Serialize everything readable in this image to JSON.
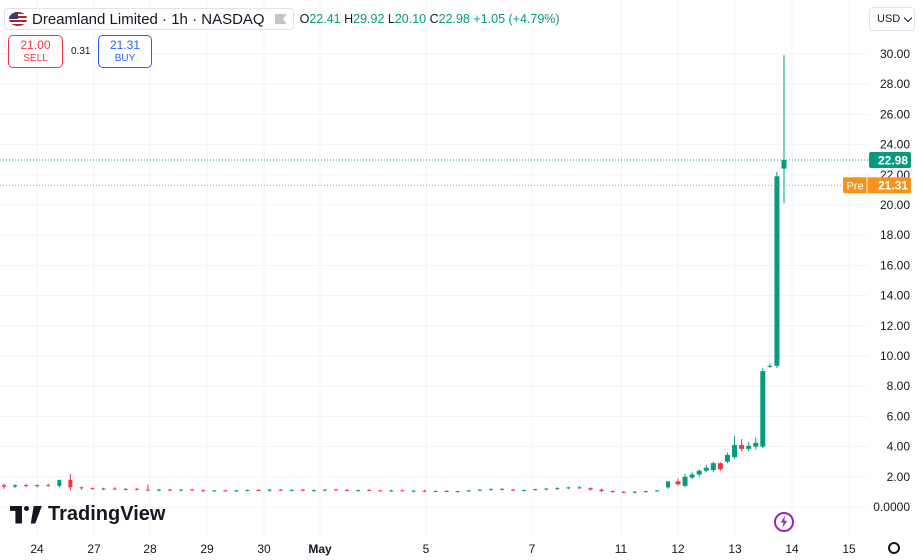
{
  "legend": {
    "symbol": "Dreamland Limited · 1h · NASDAQ",
    "open_key": "O",
    "open": "22.41",
    "high_key": "H",
    "high": "29.92",
    "low_key": "L",
    "low": "20.10",
    "close_key": "C",
    "close": "22.98",
    "change": "+1.05 (+4.79%)"
  },
  "trade": {
    "sell_price": "21.00",
    "sell_label": "SELL",
    "spread": "0.31",
    "buy_price": "21.31",
    "buy_label": "BUY"
  },
  "currency": "USD",
  "brand": "TradingView",
  "colors": {
    "up": "#089981",
    "down": "#f23645",
    "pre": "#f7931a",
    "grid": "#f0f3fa"
  },
  "chart_data": {
    "type": "candlestick",
    "x_tick_labels": [
      "24",
      "27",
      "28",
      "29",
      "30",
      "May",
      "5",
      "7",
      "11",
      "12",
      "13",
      "14",
      "15"
    ],
    "y_ticks": [
      "0.0000",
      "2.00",
      "4.00",
      "6.00",
      "8.00",
      "10.00",
      "12.00",
      "14.00",
      "16.00",
      "18.00",
      "20.00",
      "22.00",
      "24.00",
      "26.00",
      "28.00",
      "30.00"
    ],
    "ylim": [
      0,
      30.9
    ],
    "last_price": {
      "value": 22.98,
      "label": "22.98"
    },
    "premarket": {
      "label": "Pre",
      "value": 21.31,
      "text": "21.31"
    },
    "candles": [
      {
        "o": 1.45,
        "h": 1.55,
        "l": 1.2,
        "c": 1.35
      },
      {
        "o": 1.35,
        "h": 1.5,
        "l": 1.25,
        "c": 1.45
      },
      {
        "o": 1.45,
        "h": 1.55,
        "l": 1.3,
        "c": 1.4
      },
      {
        "o": 1.4,
        "h": 1.5,
        "l": 1.3,
        "c": 1.45
      },
      {
        "o": 1.45,
        "h": 1.55,
        "l": 1.35,
        "c": 1.4
      },
      {
        "o": 1.4,
        "h": 1.6,
        "l": 1.3,
        "c": 1.8
      },
      {
        "o": 1.8,
        "h": 2.2,
        "l": 1.1,
        "c": 1.3
      },
      {
        "o": 1.3,
        "h": 1.35,
        "l": 1.15,
        "c": 1.25
      },
      {
        "o": 1.25,
        "h": 1.3,
        "l": 1.15,
        "c": 1.2
      },
      {
        "o": 1.2,
        "h": 1.28,
        "l": 1.12,
        "c": 1.22
      },
      {
        "o": 1.22,
        "h": 1.3,
        "l": 1.15,
        "c": 1.18
      },
      {
        "o": 1.18,
        "h": 1.25,
        "l": 1.1,
        "c": 1.2
      },
      {
        "o": 1.2,
        "h": 1.26,
        "l": 1.1,
        "c": 1.15
      },
      {
        "o": 1.15,
        "h": 1.5,
        "l": 1.05,
        "c": 1.1
      },
      {
        "o": 1.1,
        "h": 1.2,
        "l": 1.05,
        "c": 1.15
      },
      {
        "o": 1.15,
        "h": 1.2,
        "l": 1.05,
        "c": 1.12
      },
      {
        "o": 1.12,
        "h": 1.2,
        "l": 1.05,
        "c": 1.15
      },
      {
        "o": 1.15,
        "h": 1.22,
        "l": 1.08,
        "c": 1.1
      },
      {
        "o": 1.1,
        "h": 1.18,
        "l": 1.0,
        "c": 1.05
      },
      {
        "o": 1.05,
        "h": 1.12,
        "l": 1.0,
        "c": 1.1
      },
      {
        "o": 1.1,
        "h": 1.15,
        "l": 1.02,
        "c": 1.08
      },
      {
        "o": 1.08,
        "h": 1.14,
        "l": 1.0,
        "c": 1.1
      },
      {
        "o": 1.1,
        "h": 1.16,
        "l": 1.04,
        "c": 1.12
      },
      {
        "o": 1.12,
        "h": 1.18,
        "l": 1.05,
        "c": 1.08
      },
      {
        "o": 1.08,
        "h": 1.2,
        "l": 1.02,
        "c": 1.15
      },
      {
        "o": 1.15,
        "h": 1.2,
        "l": 1.05,
        "c": 1.1
      },
      {
        "o": 1.1,
        "h": 1.16,
        "l": 1.03,
        "c": 1.14
      },
      {
        "o": 1.14,
        "h": 1.2,
        "l": 1.06,
        "c": 1.1
      },
      {
        "o": 1.1,
        "h": 1.16,
        "l": 1.02,
        "c": 1.12
      },
      {
        "o": 1.12,
        "h": 1.18,
        "l": 1.05,
        "c": 1.15
      },
      {
        "o": 1.15,
        "h": 1.22,
        "l": 1.08,
        "c": 1.12
      },
      {
        "o": 1.12,
        "h": 1.18,
        "l": 1.05,
        "c": 1.1
      },
      {
        "o": 1.1,
        "h": 1.15,
        "l": 1.02,
        "c": 1.12
      },
      {
        "o": 1.12,
        "h": 1.2,
        "l": 1.06,
        "c": 1.1
      },
      {
        "o": 1.1,
        "h": 1.15,
        "l": 1.03,
        "c": 1.08
      },
      {
        "o": 1.08,
        "h": 1.14,
        "l": 1.0,
        "c": 1.1
      },
      {
        "o": 1.1,
        "h": 1.16,
        "l": 1.04,
        "c": 1.05
      },
      {
        "o": 1.05,
        "h": 1.12,
        "l": 0.98,
        "c": 1.08
      },
      {
        "o": 1.08,
        "h": 1.14,
        "l": 1.0,
        "c": 1.04
      },
      {
        "o": 1.04,
        "h": 1.1,
        "l": 0.98,
        "c": 1.06
      },
      {
        "o": 1.06,
        "h": 1.12,
        "l": 1.0,
        "c": 1.02
      },
      {
        "o": 1.02,
        "h": 1.08,
        "l": 0.96,
        "c": 1.05
      },
      {
        "o": 1.05,
        "h": 1.12,
        "l": 1.0,
        "c": 1.1
      },
      {
        "o": 1.1,
        "h": 1.18,
        "l": 1.05,
        "c": 1.15
      },
      {
        "o": 1.15,
        "h": 1.22,
        "l": 1.08,
        "c": 1.2
      },
      {
        "o": 1.2,
        "h": 1.26,
        "l": 1.1,
        "c": 1.15
      },
      {
        "o": 1.15,
        "h": 1.2,
        "l": 1.06,
        "c": 1.1
      },
      {
        "o": 1.1,
        "h": 1.16,
        "l": 1.04,
        "c": 1.12
      },
      {
        "o": 1.12,
        "h": 1.2,
        "l": 1.08,
        "c": 1.18
      },
      {
        "o": 1.18,
        "h": 1.25,
        "l": 1.12,
        "c": 1.22
      },
      {
        "o": 1.22,
        "h": 1.3,
        "l": 1.15,
        "c": 1.25
      },
      {
        "o": 1.25,
        "h": 1.35,
        "l": 1.18,
        "c": 1.3
      },
      {
        "o": 1.3,
        "h": 1.38,
        "l": 1.2,
        "c": 1.25
      },
      {
        "o": 1.25,
        "h": 1.3,
        "l": 1.1,
        "c": 1.15
      },
      {
        "o": 1.15,
        "h": 1.22,
        "l": 1.0,
        "c": 1.05
      },
      {
        "o": 1.05,
        "h": 1.1,
        "l": 0.95,
        "c": 1.0
      },
      {
        "o": 1.0,
        "h": 1.06,
        "l": 0.92,
        "c": 0.98
      },
      {
        "o": 0.98,
        "h": 1.05,
        "l": 0.9,
        "c": 1.02
      },
      {
        "o": 1.02,
        "h": 1.08,
        "l": 0.95,
        "c": 1.05
      },
      {
        "o": 1.05,
        "h": 1.12,
        "l": 1.0,
        "c": 1.1
      },
      {
        "o": 1.3,
        "h": 1.6,
        "l": 1.2,
        "c": 1.7
      },
      {
        "o": 1.7,
        "h": 1.9,
        "l": 1.4,
        "c": 1.5
      },
      {
        "o": 1.4,
        "h": 2.2,
        "l": 1.3,
        "c": 2.0
      },
      {
        "o": 1.95,
        "h": 2.3,
        "l": 1.85,
        "c": 2.15
      },
      {
        "o": 2.15,
        "h": 2.5,
        "l": 2.0,
        "c": 2.4
      },
      {
        "o": 2.4,
        "h": 2.8,
        "l": 2.3,
        "c": 2.6
      },
      {
        "o": 2.45,
        "h": 3.0,
        "l": 2.3,
        "c": 2.9
      },
      {
        "o": 2.9,
        "h": 2.95,
        "l": 2.4,
        "c": 2.5
      },
      {
        "o": 3.0,
        "h": 3.6,
        "l": 2.9,
        "c": 3.45
      },
      {
        "o": 3.3,
        "h": 4.7,
        "l": 3.2,
        "c": 4.1
      },
      {
        "o": 4.1,
        "h": 4.5,
        "l": 3.7,
        "c": 3.85
      },
      {
        "o": 3.85,
        "h": 4.3,
        "l": 3.7,
        "c": 4.05
      },
      {
        "o": 4.0,
        "h": 4.6,
        "l": 3.8,
        "c": 4.25
      },
      {
        "o": 4.0,
        "h": 9.2,
        "l": 3.9,
        "c": 9.0
      },
      {
        "o": 9.3,
        "h": 9.5,
        "l": 9.2,
        "c": 9.35
      },
      {
        "o": 9.35,
        "h": 22.2,
        "l": 9.2,
        "c": 21.9
      },
      {
        "o": 22.41,
        "h": 29.92,
        "l": 20.1,
        "c": 22.98
      }
    ]
  }
}
